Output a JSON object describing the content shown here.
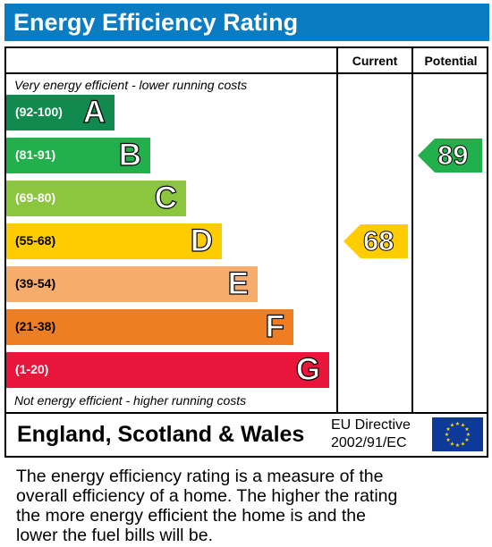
{
  "title": "Energy Efficiency Rating",
  "columns": {
    "current": "Current",
    "potential": "Potential"
  },
  "top_note": "Very energy efficient - lower running costs",
  "bottom_note": "Not energy efficient - higher running costs",
  "chart_data": {
    "type": "bar",
    "title": "Energy Efficiency Rating",
    "bands": [
      {
        "letter": "A",
        "range": "(92-100)",
        "color": "#118a4f"
      },
      {
        "letter": "B",
        "range": "(81-91)",
        "color": "#21b04b"
      },
      {
        "letter": "C",
        "range": "(69-80)",
        "color": "#8cc63f"
      },
      {
        "letter": "D",
        "range": "(55-68)",
        "color": "#ffcc00"
      },
      {
        "letter": "E",
        "range": "(39-54)",
        "color": "#f7ac6b"
      },
      {
        "letter": "F",
        "range": "(21-38)",
        "color": "#ef7d22"
      },
      {
        "letter": "G",
        "range": "(1-20)",
        "color": "#e9153b"
      }
    ],
    "current": {
      "value": 68,
      "band": "D",
      "color": "#ffcc00"
    },
    "potential": {
      "value": 89,
      "band": "B",
      "color": "#21b04b"
    }
  },
  "footer": {
    "region": "England, Scotland & Wales",
    "directive_line1": "EU Directive",
    "directive_line2": "2002/91/EC",
    "flag_icon": "eu-flag-icon"
  },
  "description": [
    "The energy efficiency rating is a measure of the",
    "overall efficiency of a home. The higher the rating",
    "the more energy efficient the home is and the",
    "lower the fuel bills will be."
  ]
}
